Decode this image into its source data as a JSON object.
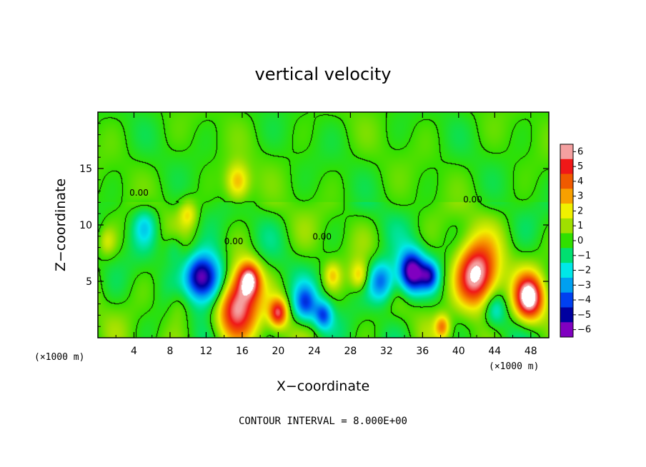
{
  "chart_data": {
    "type": "heatmap",
    "title": "vertical velocity",
    "xlabel": "X−coordinate",
    "ylabel": "Z−coordinate",
    "x_unit": "(×1000 m)",
    "y_unit": "(×1000 m)",
    "xlim": [
      0,
      50
    ],
    "ylim": [
      0,
      20
    ],
    "x_ticks": [
      4,
      8,
      12,
      16,
      20,
      24,
      28,
      32,
      36,
      40,
      44,
      48
    ],
    "y_ticks": [
      5,
      10,
      15
    ],
    "colorbar": {
      "levels": [
        6,
        5,
        4,
        3,
        2,
        1,
        0,
        -1,
        -2,
        -3,
        -4,
        -5,
        -6
      ],
      "labels": [
        "6",
        "5",
        "4",
        "3",
        "2",
        "1",
        "0",
        "−1",
        "−2",
        "−3",
        "−4",
        "−5",
        "−6"
      ],
      "colors": [
        "#f4a0a0",
        "#f01818",
        "#f05a00",
        "#f8a000",
        "#f0f000",
        "#a0e000",
        "#30e000",
        "#00e070",
        "#00e8e8",
        "#00a0f0",
        "#0040f0",
        "#0000a0",
        "#8000c0"
      ]
    },
    "features": [
      {
        "x": 15.2,
        "z": 3.0,
        "w": 2.5,
        "intensity": 6.5
      },
      {
        "x": 16.8,
        "z": 5.2,
        "w": 1.2,
        "intensity": 5.0
      },
      {
        "x": 13.0,
        "z": 4.8,
        "w": 2.0,
        "intensity": -5.0
      },
      {
        "x": 11.2,
        "z": 5.5,
        "w": 1.6,
        "intensity": -4.5
      },
      {
        "x": 20.0,
        "z": 2.2,
        "w": 1.0,
        "intensity": 5.0
      },
      {
        "x": 23.0,
        "z": 3.0,
        "w": 1.3,
        "intensity": -3.5
      },
      {
        "x": 25.0,
        "z": 2.0,
        "w": 1.0,
        "intensity": -3.5
      },
      {
        "x": 15.5,
        "z": 13.8,
        "w": 1.3,
        "intensity": 3.0
      },
      {
        "x": 10.0,
        "z": 11.0,
        "w": 1.0,
        "intensity": 2.0
      },
      {
        "x": 5.2,
        "z": 10.0,
        "w": 1.4,
        "intensity": -2.0
      },
      {
        "x": 8.5,
        "z": 8.0,
        "w": 1.2,
        "intensity": -1.5
      },
      {
        "x": 31.5,
        "z": 5.0,
        "w": 1.5,
        "intensity": -4.0
      },
      {
        "x": 34.8,
        "z": 5.8,
        "w": 1.5,
        "intensity": -6.5
      },
      {
        "x": 36.8,
        "z": 5.5,
        "w": 1.0,
        "intensity": -3.5
      },
      {
        "x": 42.0,
        "z": 5.5,
        "w": 2.3,
        "intensity": 7.0
      },
      {
        "x": 47.8,
        "z": 3.5,
        "w": 1.6,
        "intensity": 7.0
      },
      {
        "x": 44.0,
        "z": 2.5,
        "w": 1.2,
        "intensity": -2.0
      },
      {
        "x": 38.2,
        "z": 1.0,
        "w": 0.8,
        "intensity": 3.0
      },
      {
        "x": 29.0,
        "z": 5.5,
        "w": 1.0,
        "intensity": 2.5
      },
      {
        "x": 26.0,
        "z": 5.5,
        "w": 0.9,
        "intensity": 2.0
      },
      {
        "x": 1.0,
        "z": 8.5,
        "w": 1.0,
        "intensity": 1.5
      },
      {
        "x": 9.0,
        "z": 3.0,
        "w": 1.4,
        "intensity": 1.2
      }
    ],
    "contour_labels": [
      {
        "text": "0.00",
        "x": 3.5,
        "z": 12.6
      },
      {
        "text": "0.00",
        "x": 14.0,
        "z": 8.3
      },
      {
        "text": "0.00",
        "x": 23.8,
        "z": 8.7
      },
      {
        "text": "0.00",
        "x": 40.5,
        "z": 12.0
      }
    ]
  },
  "footer": {
    "contour_interval": "CONTOUR INTERVAL = 8.000E+00"
  }
}
